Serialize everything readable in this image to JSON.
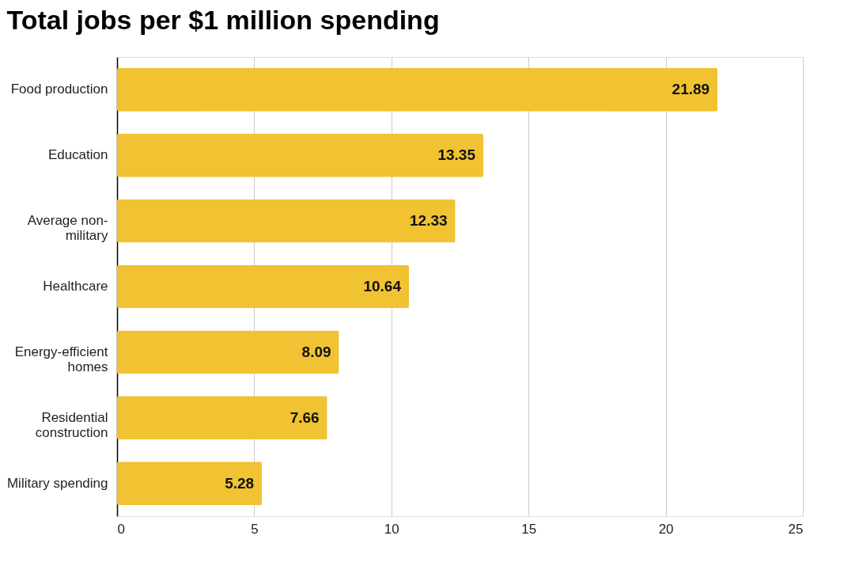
{
  "chart_data": {
    "type": "bar",
    "orientation": "horizontal",
    "title": "Total jobs per $1 million spending",
    "categories": [
      "Food production",
      "Education",
      "Average non-military",
      "Healthcare",
      "Energy-efficient homes",
      "Residential construction",
      "Military spending"
    ],
    "values": [
      21.89,
      13.35,
      12.33,
      10.64,
      8.09,
      7.66,
      5.28
    ],
    "color": "#f1c232",
    "xlim": [
      0,
      25
    ],
    "xticks": [
      0,
      5,
      10,
      15,
      20,
      25
    ],
    "grid": "x",
    "data_labels": true
  }
}
